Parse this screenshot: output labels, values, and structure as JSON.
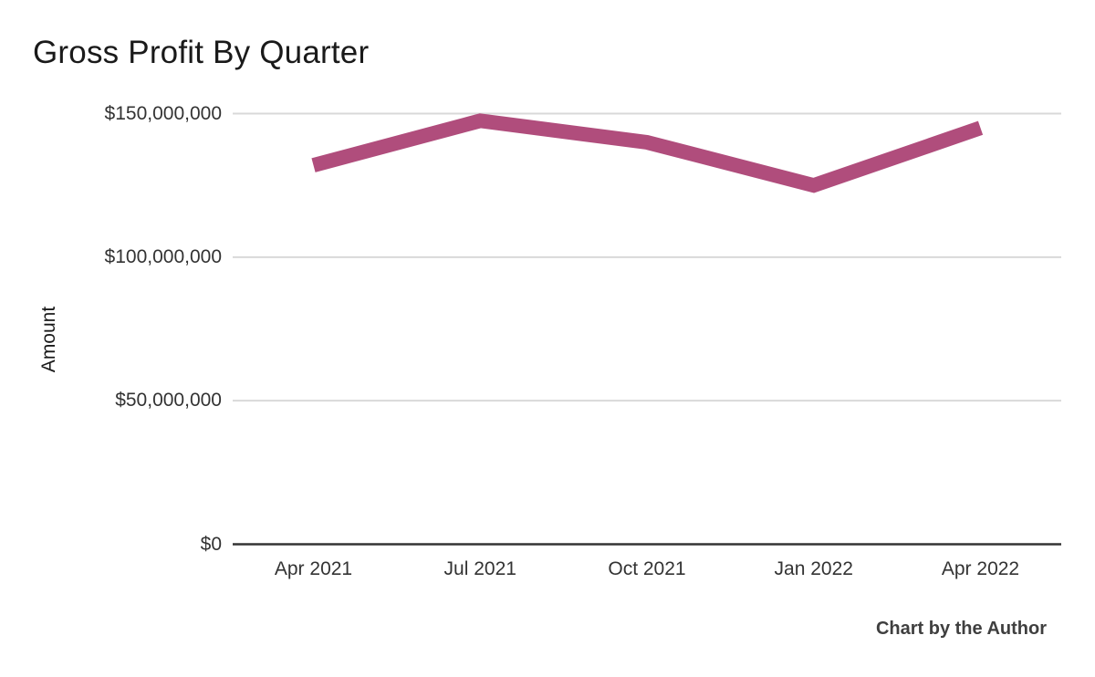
{
  "title": "Gross Profit By Quarter",
  "footer": {
    "credit": "Chart by the Author"
  },
  "chart_data": {
    "type": "line",
    "title": "Gross Profit By Quarter",
    "xlabel": "",
    "ylabel": "Amount",
    "x": [
      "Apr 2021",
      "Jul 2021",
      "Oct 2021",
      "Jan 2022",
      "Apr 2022"
    ],
    "series": [
      {
        "name": "Gross Profit",
        "values": [
          132000000,
          147500000,
          140000000,
          125000000,
          145000000
        ]
      }
    ],
    "ylim": [
      0,
      150000000
    ],
    "yticks": [
      {
        "value": 0,
        "label": "$0"
      },
      {
        "value": 50000000,
        "label": "$50,000,000"
      },
      {
        "value": 100000000,
        "label": "$100,000,000"
      },
      {
        "value": 150000000,
        "label": "$150,000,000"
      }
    ],
    "grid": true,
    "legend": false,
    "line_color": "#b04d7c",
    "gridline_color": "#d9d9d9",
    "axis_color": "#333333",
    "background_color": "#ffffff"
  }
}
